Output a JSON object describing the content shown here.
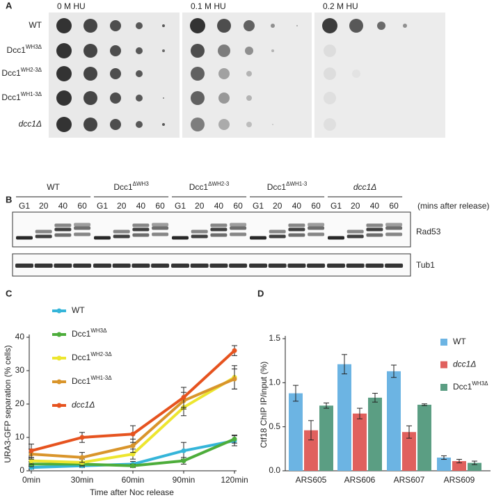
{
  "panel_labels": [
    "A",
    "B",
    "C",
    "D"
  ],
  "spot_assay": {
    "conditions": [
      "0 M HU",
      "0.1 M HU",
      "0.2 M HU"
    ],
    "strains": [
      {
        "text": "WT"
      },
      {
        "text": "Dcc1",
        "sup": "WH3Δ"
      },
      {
        "text": "Dcc1",
        "sup": "WH2-3Δ"
      },
      {
        "text": "Dcc1",
        "sup": "WH1-3Δ"
      },
      {
        "text": "dcc1Δ",
        "italic": true
      }
    ]
  },
  "western_blot": {
    "strains": [
      {
        "text": "WT"
      },
      {
        "text": "Dcc1",
        "sup": "ΔWH3"
      },
      {
        "text": "Dcc1",
        "sup": "ΔWH2-3"
      },
      {
        "text": "Dcc1",
        "sup": "ΔWH1-3"
      },
      {
        "text": "dcc1Δ",
        "italic": true
      }
    ],
    "timepoints": [
      "G1",
      "20",
      "40",
      "60"
    ],
    "time_unit": "(mins after release)",
    "blots": [
      "Rad53",
      "Tub1"
    ]
  },
  "chart_data": [
    {
      "type": "line",
      "x_label": "Time after Noc release",
      "y_label": "URA3-GFP separation (% cells)",
      "categories": [
        "0min",
        "30min",
        "60min",
        "90min",
        "120min"
      ],
      "ylim": [
        0,
        40
      ],
      "yticks": [
        0,
        10,
        20,
        30,
        40
      ],
      "legend": "upper left",
      "series": [
        {
          "name": {
            "text": "WT"
          },
          "color": "#35b5d9",
          "values": [
            1,
            1.5,
            2,
            6,
            9
          ],
          "errors": [
            0.5,
            0.5,
            0.8,
            2.5,
            1.5
          ]
        },
        {
          "name": {
            "text": "Dcc1",
            "sup": "WH3Δ"
          },
          "color": "#4dad3b",
          "values": [
            2,
            2,
            1.5,
            3,
            9.5
          ],
          "errors": [
            0.8,
            0.6,
            0.5,
            1,
            1.2
          ]
        },
        {
          "name": {
            "text": "Dcc1",
            "sup": "WH2-3Δ"
          },
          "color": "#ede62f",
          "values": [
            3,
            2.5,
            5,
            19,
            28
          ],
          "errors": [
            1,
            1,
            1.5,
            2.5,
            3.5
          ]
        },
        {
          "name": {
            "text": "Dcc1",
            "sup": "WH1-3Δ"
          },
          "color": "#d9952b",
          "values": [
            5,
            4,
            7.5,
            21,
            27.5
          ],
          "errors": [
            1.5,
            1.5,
            2,
            2.5,
            3
          ]
        },
        {
          "name": {
            "text": "dcc1Δ",
            "italic": true
          },
          "color": "#e6531f",
          "values": [
            6,
            10,
            11,
            22,
            36
          ],
          "errors": [
            2,
            1.5,
            2.5,
            3,
            1.5
          ]
        }
      ]
    },
    {
      "type": "bar",
      "y_label": "Ctf18 ChIP IP/input (%)",
      "categories": [
        "ARS605",
        "ARS606",
        "ARS607",
        "ARS609"
      ],
      "ylim": [
        0,
        1.5
      ],
      "yticks": [
        {
          "value": 0,
          "label": "0.0"
        },
        0.5,
        {
          "value": 1,
          "label": "1.0"
        },
        1.5
      ],
      "legend": "upper right",
      "series": [
        {
          "name": {
            "text": "WT"
          },
          "color": "#6cb4e3",
          "values": [
            0.88,
            1.21,
            1.13,
            0.15
          ],
          "errors": [
            0.09,
            0.11,
            0.07,
            0.02
          ]
        },
        {
          "name": {
            "text": "dcc1Δ",
            "italic": true
          },
          "color": "#e0615e",
          "values": [
            0.46,
            0.65,
            0.44,
            0.11
          ],
          "errors": [
            0.11,
            0.06,
            0.07,
            0.02
          ]
        },
        {
          "name": {
            "text": "Dcc1",
            "sup": "WH3Δ"
          },
          "color": "#5b9e83",
          "values": [
            0.74,
            0.83,
            0.75,
            0.09
          ],
          "errors": [
            0.03,
            0.05,
            0.01,
            0.02
          ]
        }
      ]
    }
  ]
}
